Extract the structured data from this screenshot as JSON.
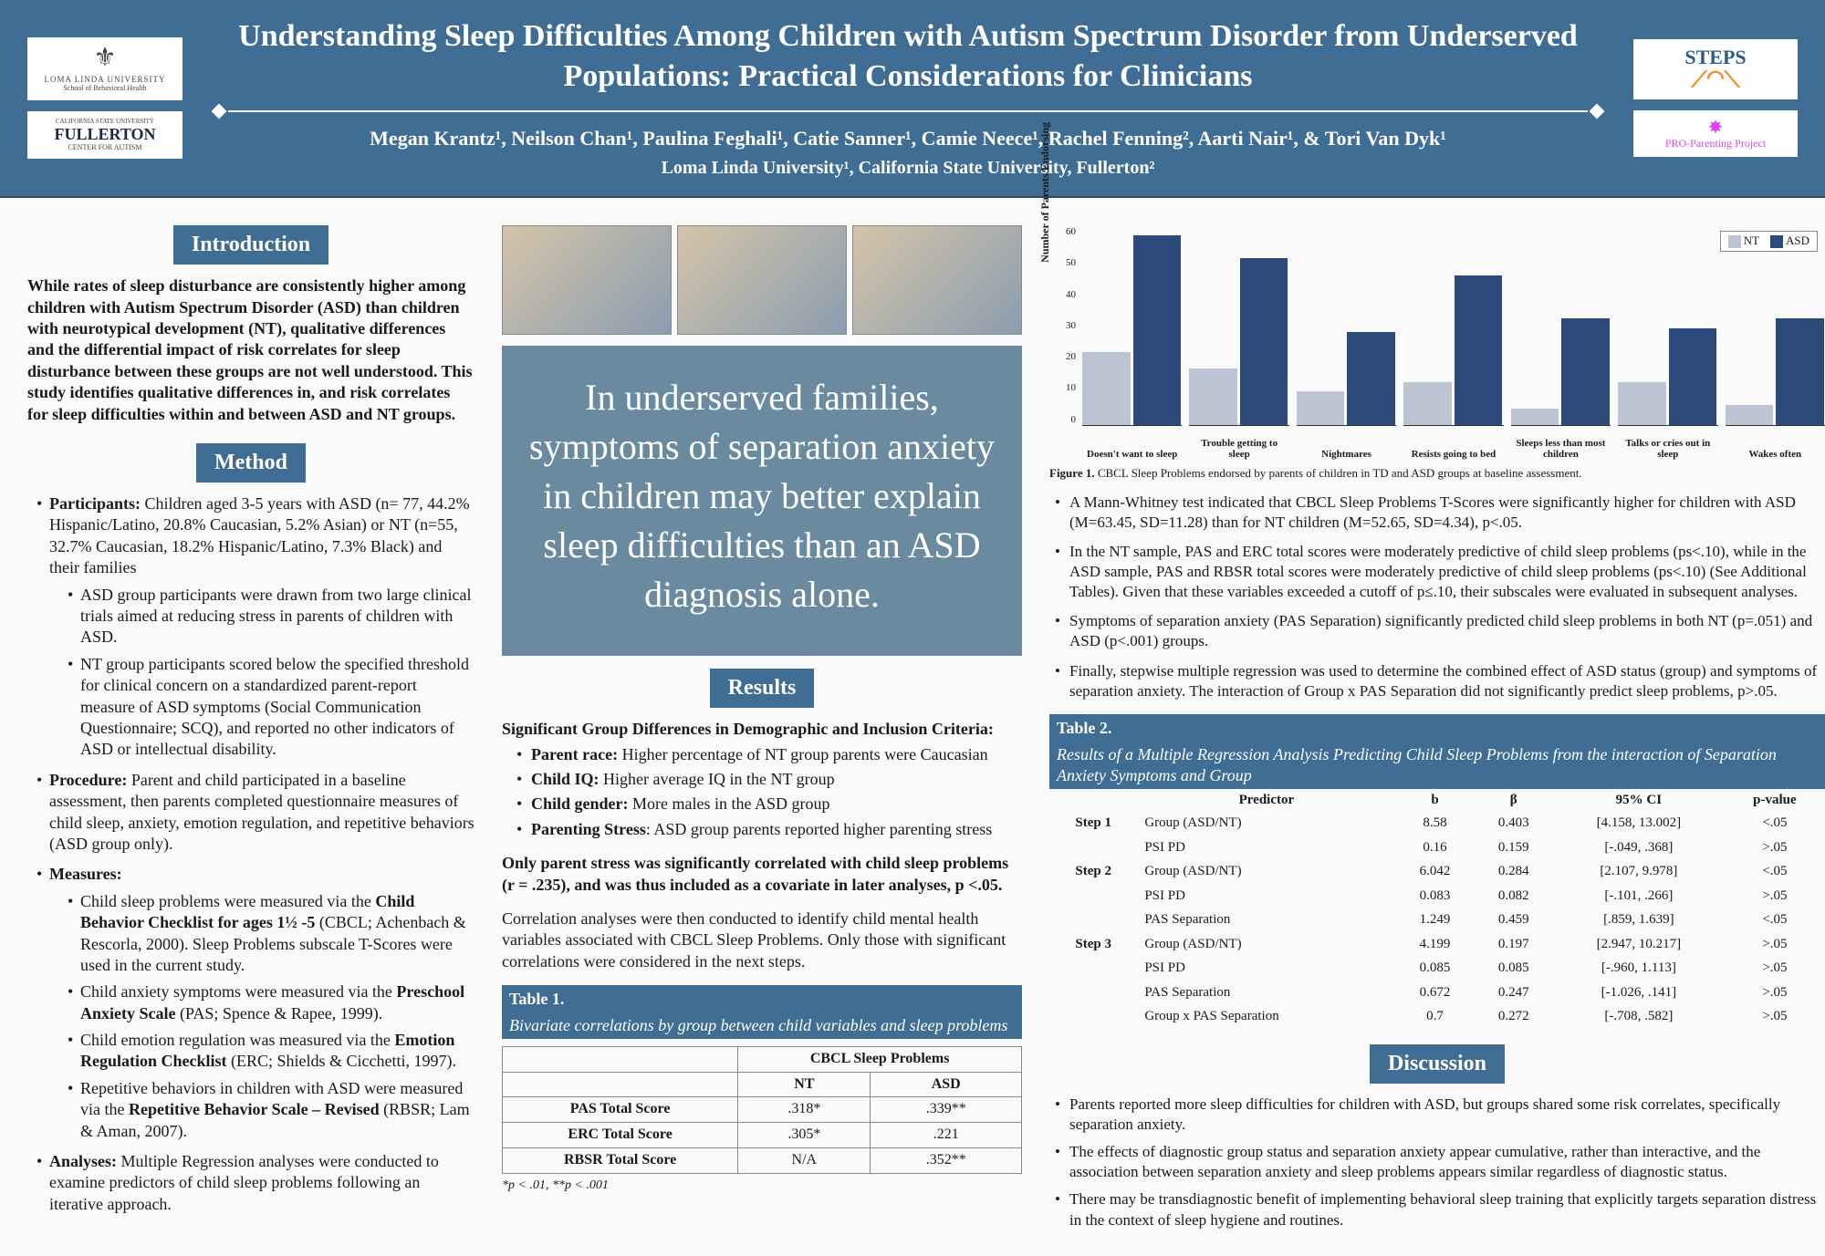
{
  "colors": {
    "header_bg": "#3f6d94",
    "callout_bg": "#6a8aa0",
    "bar_nt": "#bcc4d4",
    "bar_asd": "#2c4a7a"
  },
  "header": {
    "title": "Understanding Sleep Difficulties Among Children with Autism Spectrum Disorder from Underserved Populations: Practical Considerations for Clinicians",
    "authors": "Megan Krantz¹, Neilson Chan¹, Paulina Feghali¹, Catie Sanner¹, Camie Neece¹, Rachel Fenning², Aarti Nair¹, & Tori Van Dyk¹",
    "affiliations": "Loma Linda University¹, California State University, Fullerton²",
    "logo_llu_name": "LOMA LINDA UNIVERSITY",
    "logo_llu_sub": "School of Behavioral Health",
    "logo_fullerton_pre": "CALIFORNIA STATE UNIVERSITY",
    "logo_fullerton": "FULLERTON",
    "logo_fullerton_sub": "CENTER FOR AUTISM",
    "logo_steps": "STEPS",
    "logo_pro": "PRO-Parenting Project"
  },
  "intro": {
    "heading": "Introduction",
    "text": "While rates of sleep disturbance are consistently higher among children with Autism Spectrum Disorder (ASD) than children with neurotypical development (NT), qualitative differences and the differential impact of risk correlates for sleep disturbance between these groups are not well understood. This study identifies qualitative differences in, and risk correlates for sleep difficulties within and between ASD and NT groups."
  },
  "method": {
    "heading": "Method",
    "participants_label": "Participants:",
    "participants_text": " Children aged 3-5 years with ASD (n= 77, 44.2% Hispanic/Latino, 20.8% Caucasian, 5.2% Asian) or NT (n=55, 32.7% Caucasian, 18.2% Hispanic/Latino, 7.3% Black) and their families",
    "participants_sub": [
      "ASD group participants were drawn from two large clinical trials aimed at reducing stress in parents of children with ASD.",
      "NT group participants scored below the specified threshold for clinical concern on a standardized parent-report measure of ASD symptoms (Social Communication Questionnaire; SCQ), and reported no other indicators of ASD or intellectual disability."
    ],
    "procedure_label": "Procedure:",
    "procedure_text": " Parent and child participated in a baseline assessment, then parents completed questionnaire measures of child sleep, anxiety, emotion regulation, and repetitive behaviors (ASD group only).",
    "measures_label": "Measures:",
    "measures_sub": [
      "Child sleep problems were measured via the Child Behavior Checklist for ages 1½ -5 (CBCL; Achenbach & Rescorla, 2000). Sleep Problems subscale T-Scores were used in the current study.",
      "Child anxiety symptoms were measured via the Preschool Anxiety Scale (PAS; Spence & Rapee, 1999).",
      "Child emotion regulation was measured via the Emotion Regulation Checklist (ERC; Shields & Cicchetti, 1997).",
      "Repetitive behaviors in children with ASD were measured via the Repetitive Behavior Scale – Revised (RBSR; Lam & Aman, 2007)."
    ],
    "analyses_label": "Analyses:",
    "analyses_text": " Multiple Regression analyses were conducted to examine predictors of child sleep problems following an iterative approach."
  },
  "callout": "In underserved families, symptoms of separation anxiety in children may better explain sleep difficulties than an ASD diagnosis alone.",
  "results": {
    "heading": "Results",
    "group_diff_heading": "Significant Group Differences in Demographic and Inclusion Criteria:",
    "group_diff": [
      {
        "label": "Parent race:",
        "text": " Higher percentage of NT group parents were Caucasian"
      },
      {
        "label": "Child IQ:",
        "text": " Higher average IQ in the NT group"
      },
      {
        "label": "Child gender:",
        "text": " More males in the ASD group"
      },
      {
        "label": "Parenting Stress",
        "text": ": ASD group parents reported higher parenting stress"
      }
    ],
    "parent_stress": "Only parent stress was significantly correlated with child sleep problems (r = .235), and was thus included as a covariate in later analyses, p <.05.",
    "correlation_note": "Correlation analyses were then conducted to identify child mental health variables associated with CBCL Sleep Problems. Only those with significant correlations were considered in the next steps."
  },
  "table1": {
    "title": "Table 1.",
    "subtitle": "Bivariate correlations by group between child variables and sleep problems",
    "super_header": "CBCL Sleep Problems",
    "col_nt": "NT",
    "col_asd": "ASD",
    "rows": [
      {
        "name": "PAS Total Score",
        "nt": ".318*",
        "asd": ".339**"
      },
      {
        "name": "ERC Total Score",
        "nt": ".305*",
        "asd": ".221"
      },
      {
        "name": "RBSR Total Score",
        "nt": "N/A",
        "asd": ".352**"
      }
    ],
    "note": "*p < .01, **p < .001"
  },
  "chart": {
    "ylabel": "Number of Parents Endorsing",
    "ymax": 60,
    "yticks": [
      "60",
      "50",
      "40",
      "30",
      "20",
      "10",
      "0"
    ],
    "legend_nt": "NT",
    "legend_asd": "ASD",
    "categories": [
      {
        "label": "Doesn't want to sleep",
        "nt": 22,
        "asd": 57
      },
      {
        "label": "Trouble getting to sleep",
        "nt": 17,
        "asd": 50
      },
      {
        "label": "Nightmares",
        "nt": 10,
        "asd": 28
      },
      {
        "label": "Resists going to bed",
        "nt": 13,
        "asd": 45
      },
      {
        "label": "Sleeps less than most children",
        "nt": 5,
        "asd": 32
      },
      {
        "label": "Talks or cries out in sleep",
        "nt": 13,
        "asd": 29
      },
      {
        "label": "Wakes often",
        "nt": 6,
        "asd": 32
      }
    ],
    "caption_label": "Figure 1.",
    "caption": " CBCL Sleep Problems endorsed by parents of children in TD and ASD groups at baseline assessment."
  },
  "right_bullets": [
    "A Mann-Whitney test indicated that CBCL Sleep Problems T-Scores were significantly higher for children with ASD (M=63.45, SD=11.28) than for NT children (M=52.65, SD=4.34), p<.05.",
    "In the NT sample, PAS and ERC total scores were moderately predictive of child sleep problems (ps<.10), while in the ASD sample, PAS and RBSR total scores were moderately predictive of child sleep problems (ps<.10) (See Additional Tables). Given that these variables exceeded a cutoff of p≤.10, their subscales were evaluated in subsequent analyses.",
    "Symptoms of separation anxiety (PAS Separation) significantly predicted child sleep problems in both NT (p=.051) and ASD (p<.001) groups.",
    "Finally, stepwise multiple regression was used to determine the combined effect of ASD status (group) and symptoms of separation anxiety. The interaction of Group x PAS Separation did not significantly predict sleep problems, p>.05."
  ],
  "table2": {
    "title": "Table 2.",
    "subtitle": "Results of a Multiple Regression Analysis Predicting Child Sleep Problems from the interaction of Separation Anxiety Symptoms and Group",
    "headers": [
      "Predictor",
      "b",
      "β",
      "95% CI",
      "p-value"
    ],
    "steps": [
      {
        "label": "Step 1",
        "rows": [
          {
            "p": "Group (ASD/NT)",
            "b": "8.58",
            "beta": "0.403",
            "ci": "[4.158, 13.002]",
            "pv": "<.05"
          },
          {
            "p": "PSI PD",
            "b": "0.16",
            "beta": "0.159",
            "ci": "[-.049, .368]",
            "pv": ">.05"
          }
        ]
      },
      {
        "label": "Step 2",
        "rows": [
          {
            "p": "Group (ASD/NT)",
            "b": "6.042",
            "beta": "0.284",
            "ci": "[2.107, 9.978]",
            "pv": "<.05"
          },
          {
            "p": "PSI PD",
            "b": "0.083",
            "beta": "0.082",
            "ci": "[-.101, .266]",
            "pv": ">.05"
          },
          {
            "p": "PAS Separation",
            "b": "1.249",
            "beta": "0.459",
            "ci": "[.859, 1.639]",
            "pv": "<.05"
          }
        ]
      },
      {
        "label": "Step 3",
        "rows": [
          {
            "p": "Group (ASD/NT)",
            "b": "4.199",
            "beta": "0.197",
            "ci": "[2.947, 10.217]",
            "pv": ">.05"
          },
          {
            "p": "PSI PD",
            "b": "0.085",
            "beta": "0.085",
            "ci": "[-.960, 1.113]",
            "pv": ">.05"
          },
          {
            "p": "PAS Separation",
            "b": "0.672",
            "beta": "0.247",
            "ci": "[-1.026, .141]",
            "pv": ">.05"
          },
          {
            "p": "Group x PAS Separation",
            "b": "0.7",
            "beta": "0.272",
            "ci": "[-.708, .582]",
            "pv": ">.05"
          }
        ]
      }
    ]
  },
  "discussion": {
    "heading": "Discussion",
    "items": [
      "Parents reported more sleep difficulties for children with ASD, but groups shared some risk correlates, specifically separation anxiety.",
      "The effects of diagnostic group status and separation anxiety appear cumulative, rather than interactive, and the association between separation anxiety and sleep problems appears similar regardless of diagnostic status.",
      "There may be transdiagnostic benefit of implementing behavioral sleep training that explicitly targets separation distress in the context of sleep hygiene and routines."
    ]
  }
}
